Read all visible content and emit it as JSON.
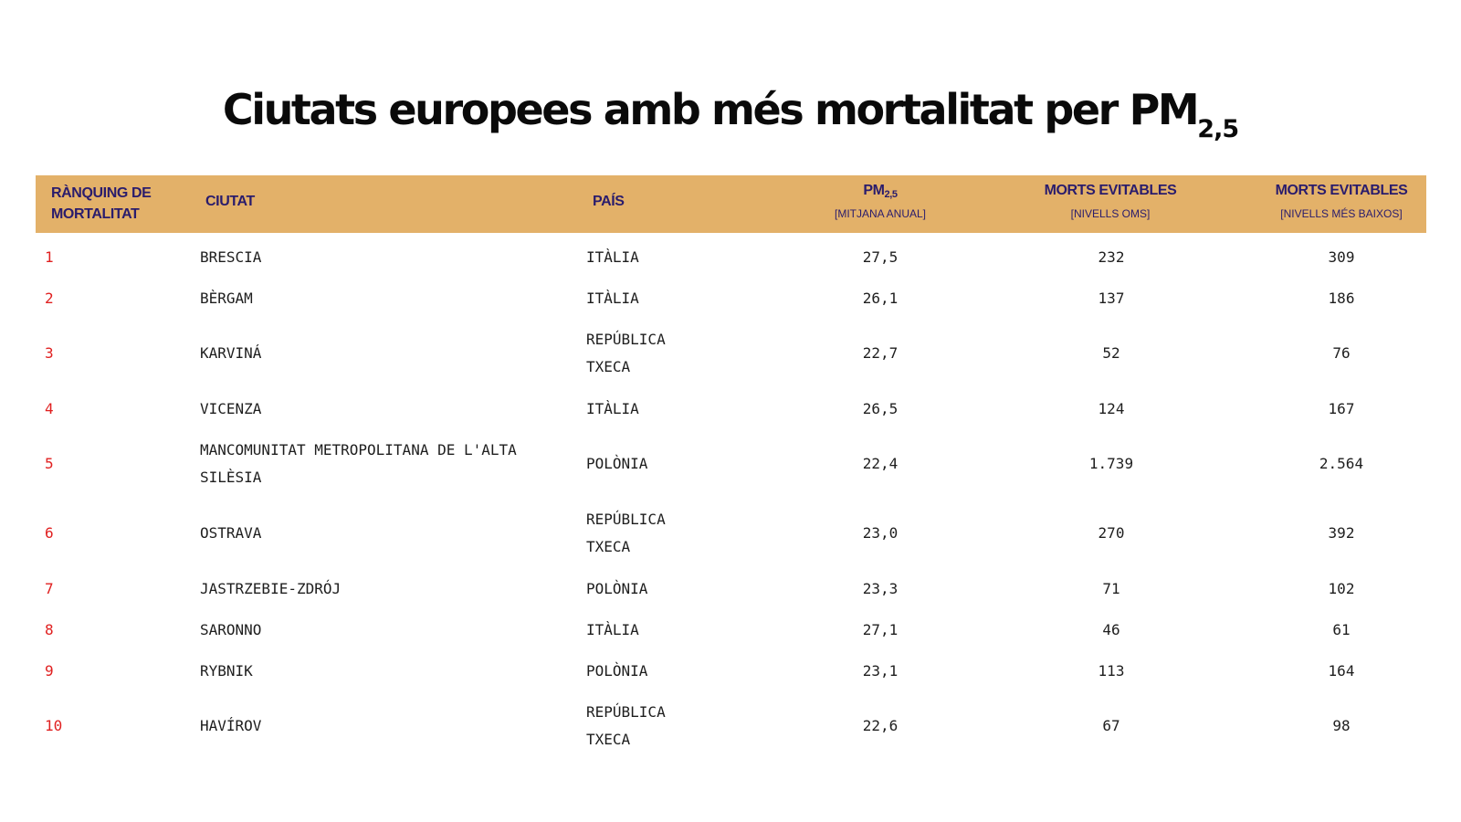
{
  "title": {
    "main": "Ciutats europees amb més mortalitat per PM",
    "sub": "2,5"
  },
  "header": {
    "rank": "RÀNQUING DE MORTALITAT",
    "city": "CIUTAT",
    "country": "PAÍS",
    "pm_main": "PM",
    "pm_sub": "2,5",
    "pm_note": "[MITJANA ANUAL]",
    "who_main": "MORTS EVITABLES",
    "who_note": "[NIVELLS OMS]",
    "low_main": "MORTS EVITABLES",
    "low_note": "[NIVELLS MÉS BAIXOS]"
  },
  "rows": [
    {
      "rank": "1",
      "city": "BRESCIA",
      "country": "ITÀLIA",
      "pm": "27,5",
      "who": "232",
      "low": "309"
    },
    {
      "rank": "2",
      "city": "BÈRGAM",
      "country": "ITÀLIA",
      "pm": "26,1",
      "who": "137",
      "low": "186"
    },
    {
      "rank": "3",
      "city": "KARVINÁ",
      "country": "REPÚBLICA TXECA",
      "pm": "22,7",
      "who": "52",
      "low": "76"
    },
    {
      "rank": "4",
      "city": "VICENZA",
      "country": "ITÀLIA",
      "pm": "26,5",
      "who": "124",
      "low": "167"
    },
    {
      "rank": "5",
      "city": "MANCOMUNITAT METROPOLITANA DE L'ALTA SILÈSIA",
      "country": "POLÒNIA",
      "pm": "22,4",
      "who": "1.739",
      "low": "2.564"
    },
    {
      "rank": "6",
      "city": "OSTRAVA",
      "country": "REPÚBLICA TXECA",
      "pm": "23,0",
      "who": "270",
      "low": "392"
    },
    {
      "rank": "7",
      "city": "JASTRZEBIE-ZDRÓJ",
      "country": "POLÒNIA",
      "pm": "23,3",
      "who": "71",
      "low": "102"
    },
    {
      "rank": "8",
      "city": "SARONNO",
      "country": "ITÀLIA",
      "pm": "27,1",
      "who": "46",
      "low": "61"
    },
    {
      "rank": "9",
      "city": "RYBNIK",
      "country": "POLÒNIA",
      "pm": "23,1",
      "who": "113",
      "low": "164"
    },
    {
      "rank": "10",
      "city": "HAVÍROV",
      "country": "REPÚBLICA TXECA",
      "pm": "22,6",
      "who": "67",
      "low": "98"
    }
  ]
}
